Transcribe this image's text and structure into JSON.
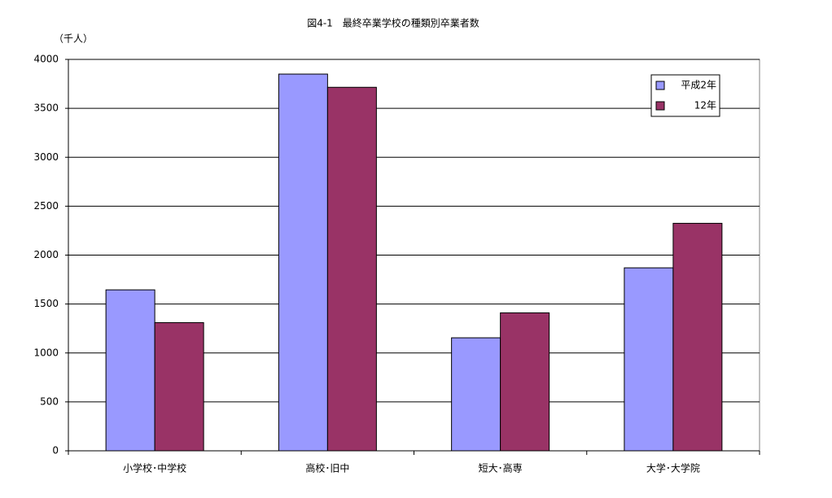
{
  "chart_data": {
    "type": "bar",
    "title": "図4-1　最終卒業学校の種類別卒業者数",
    "y_label": "（千人）",
    "categories": [
      "小学校･中学校",
      "高校･旧中",
      "短大･高専",
      "大学･大学院"
    ],
    "series": [
      {
        "name": "平成2年",
        "color": "#9999ff",
        "values": [
          1645,
          3850,
          1155,
          1870
        ]
      },
      {
        "name": "12年",
        "color": "#993366",
        "values": [
          1310,
          3715,
          1410,
          2325
        ]
      }
    ],
    "ylim": [
      0,
      4000
    ],
    "yticks": [
      0,
      500,
      1000,
      1500,
      2000,
      2500,
      3000,
      3500,
      4000
    ],
    "grid": true,
    "legend": "top-right"
  }
}
